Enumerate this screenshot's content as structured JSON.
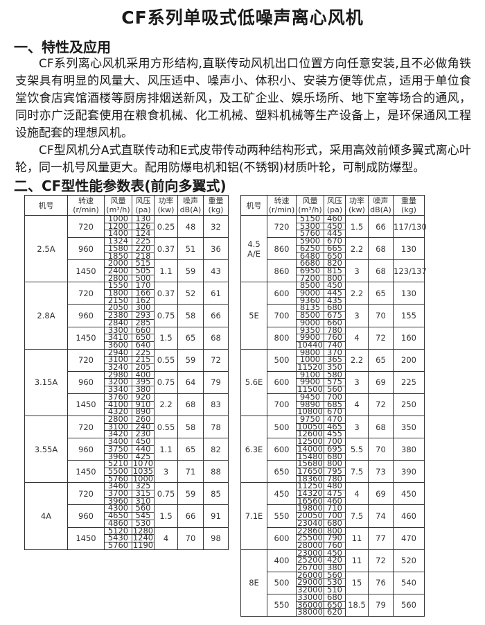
{
  "title": "CF系列单吸式低噪声离心风机",
  "section1": {
    "heading": "一、特性及应用",
    "paragraphs": [
      "CF系列离心风机采用方形结构,直联传动风机出口位置方向任意安装,且不必做角铁支架具有明显的风量大、风压适中、噪声小、体积小、安装方便等优点，适用于单位食堂饮食店宾馆酒楼等厨房排烟送新风，及工矿企业、娱乐场所、地下室等场合的通风，同时亦广泛配套使用在粮食机械、化工机械、塑料机械等生产设备上，是环保通风工程设施配套的理想风机。",
      "CF型风机分A式直联传动和E式皮带传动两种结构形式，采用高效前倾多翼式离心叶轮，同一机号风量更大。配用防爆电机和铝(不锈钢)材质叶轮，可制成防爆型。"
    ]
  },
  "section2": {
    "heading": "二、CF型性能参数表(前向多翼式)"
  },
  "table_headers": [
    {
      "name": "机号",
      "unit": ""
    },
    {
      "name": "转速",
      "unit": "(r/min)"
    },
    {
      "name": "风量",
      "unit": "(m³/h)"
    },
    {
      "name": "风压",
      "unit": "(pa)"
    },
    {
      "name": "功率",
      "unit": "(kw)"
    },
    {
      "name": "噪声",
      "unit": "dB(A)"
    },
    {
      "name": "重量",
      "unit": "(kg)"
    }
  ],
  "table_left": [
    {
      "model": "2.5A",
      "speeds": [
        {
          "rpm": "720",
          "flows": [
            "1000",
            "1200",
            "1400"
          ],
          "pressures": [
            "130",
            "126",
            "124"
          ],
          "power": "0.25",
          "noise": "48",
          "weight": "32"
        },
        {
          "rpm": "960",
          "flows": [
            "1324",
            "1580",
            "1850"
          ],
          "pressures": [
            "225",
            "220",
            "218"
          ],
          "power": "0.37",
          "noise": "51",
          "weight": "36"
        },
        {
          "rpm": "1450",
          "flows": [
            "2000",
            "2400",
            "2800"
          ],
          "pressures": [
            "515",
            "505",
            "500"
          ],
          "power": "1.1",
          "noise": "59",
          "weight": "43"
        }
      ]
    },
    {
      "model": "2.8A",
      "speeds": [
        {
          "rpm": "720",
          "flows": [
            "1550",
            "1800",
            "2150"
          ],
          "pressures": [
            "170",
            "166",
            "162"
          ],
          "power": "0.37",
          "noise": "52",
          "weight": "61"
        },
        {
          "rpm": "960",
          "flows": [
            "2050",
            "2380",
            "2840"
          ],
          "pressures": [
            "300",
            "293",
            "285"
          ],
          "power": "0.75",
          "noise": "58",
          "weight": "66"
        },
        {
          "rpm": "1450",
          "flows": [
            "3300",
            "3410",
            "3600"
          ],
          "pressures": [
            "660",
            "650",
            "640"
          ],
          "power": "1.5",
          "noise": "65",
          "weight": "68"
        }
      ]
    },
    {
      "model": "3.15A",
      "speeds": [
        {
          "rpm": "720",
          "flows": [
            "2940",
            "3100",
            "3240"
          ],
          "pressures": [
            "225",
            "215",
            "205"
          ],
          "power": "0.55",
          "noise": "59",
          "weight": "72"
        },
        {
          "rpm": "960",
          "flows": [
            "2980",
            "3200",
            "3340"
          ],
          "pressures": [
            "400",
            "395",
            "380"
          ],
          "power": "0.75",
          "noise": "64",
          "weight": "79"
        },
        {
          "rpm": "1450",
          "flows": [
            "3760",
            "4100",
            "4320"
          ],
          "pressures": [
            "920",
            "910",
            "890"
          ],
          "power": "2.2",
          "noise": "68",
          "weight": "83"
        }
      ]
    },
    {
      "model": "3.55A",
      "speeds": [
        {
          "rpm": "720",
          "flows": [
            "2800",
            "3100",
            "3420"
          ],
          "pressures": [
            "260",
            "240",
            "230"
          ],
          "power": "0.55",
          "noise": "58",
          "weight": "78"
        },
        {
          "rpm": "960",
          "flows": [
            "3400",
            "3750",
            "3960"
          ],
          "pressures": [
            "450",
            "440",
            "425"
          ],
          "power": "1.1",
          "noise": "65",
          "weight": "82"
        },
        {
          "rpm": "1450",
          "flows": [
            "5210",
            "5500",
            "5760"
          ],
          "pressures": [
            "1070",
            "1035",
            "1000"
          ],
          "power": "3",
          "noise": "71",
          "weight": "88"
        }
      ]
    },
    {
      "model": "4A",
      "speeds": [
        {
          "rpm": "720",
          "flows": [
            "3460",
            "3700",
            "3960"
          ],
          "pressures": [
            "325",
            "315",
            "310"
          ],
          "power": "0.75",
          "noise": "59",
          "weight": "85"
        },
        {
          "rpm": "960",
          "flows": [
            "4300",
            "4650",
            "4860"
          ],
          "pressures": [
            "560",
            "545",
            "530"
          ],
          "power": "1.5",
          "noise": "66",
          "weight": "91"
        },
        {
          "rpm": "1450",
          "flows": [
            "5120",
            "5430",
            "5760"
          ],
          "pressures": [
            "1280",
            "1240",
            "1190"
          ],
          "power": "4",
          "noise": "70",
          "weight": "98"
        }
      ]
    }
  ],
  "table_right": [
    {
      "model": "4.5 A/E",
      "speeds": [
        {
          "rpm": "720",
          "flows": [
            "5150",
            "5300",
            "5760"
          ],
          "pressures": [
            "460",
            "450",
            "445"
          ],
          "power": "1.5",
          "noise": "66",
          "weight": "117/130"
        },
        {
          "rpm": "860",
          "flows": [
            "5900",
            "6250",
            "6480"
          ],
          "pressures": [
            "670",
            "665",
            "650"
          ],
          "power": "2.2",
          "noise": "68",
          "weight": "130"
        },
        {
          "rpm": "860",
          "flows": [
            "6680",
            "6950",
            "7200"
          ],
          "pressures": [
            "820",
            "815",
            "800"
          ],
          "power": "3",
          "noise": "68",
          "weight": "123/137"
        }
      ]
    },
    {
      "model": "5E",
      "speeds": [
        {
          "rpm": "600",
          "flows": [
            "8500",
            "9000",
            "9360"
          ],
          "pressures": [
            "450",
            "445",
            "435"
          ],
          "power": "2.2",
          "noise": "65",
          "weight": "130"
        },
        {
          "rpm": "700",
          "flows": [
            "8135",
            "8500",
            "9000"
          ],
          "pressures": [
            "680",
            "675",
            "660"
          ],
          "power": "3",
          "noise": "70",
          "weight": "155"
        },
        {
          "rpm": "800",
          "flows": [
            "9350",
            "9900",
            "10440"
          ],
          "pressures": [
            "780",
            "760",
            "740"
          ],
          "power": "4",
          "noise": "72",
          "weight": "160"
        }
      ]
    },
    {
      "model": "5.6E",
      "speeds": [
        {
          "rpm": "500",
          "flows": [
            "9800",
            "1000",
            "11520"
          ],
          "pressures": [
            "370",
            "365",
            "350"
          ],
          "power": "2.2",
          "noise": "65",
          "weight": "200"
        },
        {
          "rpm": "600",
          "flows": [
            "9100",
            "9900",
            "11500"
          ],
          "pressures": [
            "580",
            "575",
            "560"
          ],
          "power": "3",
          "noise": "69",
          "weight": "225"
        },
        {
          "rpm": "700",
          "flows": [
            "9450",
            "9890",
            "10800"
          ],
          "pressures": [
            "700",
            "685",
            "670"
          ],
          "power": "4",
          "noise": "72",
          "weight": "250"
        }
      ]
    },
    {
      "model": "6.3E",
      "speeds": [
        {
          "rpm": "500",
          "flows": [
            "9750",
            "10050",
            "12600"
          ],
          "pressures": [
            "470",
            "465",
            "455"
          ],
          "power": "3",
          "noise": "68",
          "weight": "350"
        },
        {
          "rpm": "600",
          "flows": [
            "12500",
            "14000",
            "15480"
          ],
          "pressures": [
            "700",
            "695",
            "680"
          ],
          "power": "5.5",
          "noise": "70",
          "weight": "380"
        },
        {
          "rpm": "650",
          "flows": [
            "15680",
            "17650",
            "18360"
          ],
          "pressures": [
            "800",
            "795",
            "780"
          ],
          "power": "7.5",
          "noise": "73",
          "weight": "390"
        }
      ]
    },
    {
      "model": "7.1E",
      "speeds": [
        {
          "rpm": "450",
          "flows": [
            "11250",
            "14320",
            "16560"
          ],
          "pressures": [
            "480",
            "475",
            "460"
          ],
          "power": "4",
          "noise": "69",
          "weight": "450"
        },
        {
          "rpm": "550",
          "flows": [
            "19800",
            "20050",
            "23040"
          ],
          "pressures": [
            "710",
            "700",
            "680"
          ],
          "power": "7.5",
          "noise": "74",
          "weight": "460"
        },
        {
          "rpm": "600",
          "flows": [
            "22860",
            "25500",
            "28000"
          ],
          "pressures": [
            "800",
            "790",
            "760"
          ],
          "power": "11",
          "noise": "77",
          "weight": "470"
        }
      ]
    },
    {
      "model": "8E",
      "speeds": [
        {
          "rpm": "400",
          "flows": [
            "23000",
            "25200",
            "26700"
          ],
          "pressures": [
            "450",
            "420",
            "380"
          ],
          "power": "11",
          "noise": "72",
          "weight": "520"
        },
        {
          "rpm": "500",
          "flows": [
            "26000",
            "29000",
            "32000"
          ],
          "pressures": [
            "560",
            "530",
            "510"
          ],
          "power": "15",
          "noise": "76",
          "weight": "540"
        },
        {
          "rpm": "550",
          "flows": [
            "33000",
            "36000",
            "38000"
          ],
          "pressures": [
            "680",
            "650",
            "620"
          ],
          "power": "18.5",
          "noise": "79",
          "weight": "560"
        }
      ]
    }
  ]
}
